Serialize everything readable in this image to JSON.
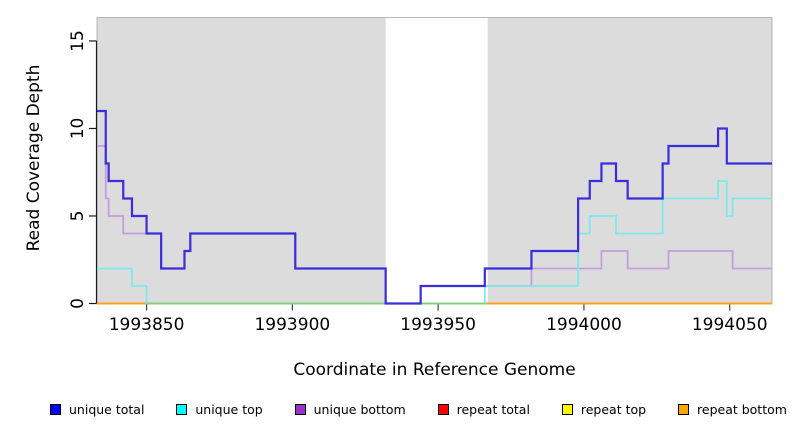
{
  "chart_data": {
    "type": "step-line",
    "x_axis": {
      "label": "Coordinate in Reference Genome",
      "min": 1993833,
      "max": 1994064.5,
      "ticks": [
        1993850,
        1993900,
        1993950,
        1994000,
        1994050
      ]
    },
    "y_axis": {
      "label": "Read Coverage Depth",
      "min": 0,
      "max": 16.34,
      "ticks": [
        0,
        5,
        10,
        15
      ]
    },
    "plot": {
      "background": "#DCDCDC",
      "border": "#B4B4B4",
      "masked_region": {
        "start": 1993932,
        "end": 1993967,
        "color": "#FFFFFF"
      }
    },
    "series": [
      {
        "name": "unique total",
        "line_color": "#3A2EDC",
        "legend_color": "#0000FF",
        "line_width": 2.2,
        "points": [
          [
            1993833,
            11
          ],
          [
            1993836,
            8
          ],
          [
            1993837,
            7
          ],
          [
            1993842,
            6
          ],
          [
            1993845,
            5
          ],
          [
            1993850,
            4
          ],
          [
            1993855,
            2
          ],
          [
            1993863,
            3
          ],
          [
            1993865,
            4
          ],
          [
            1993901,
            2
          ],
          [
            1993932,
            0
          ],
          [
            1993944,
            1
          ],
          [
            1993966,
            2
          ],
          [
            1993982,
            3
          ],
          [
            1993998,
            6
          ],
          [
            1994002,
            7
          ],
          [
            1994006,
            8
          ],
          [
            1994011,
            7
          ],
          [
            1994015,
            6
          ],
          [
            1994027,
            8
          ],
          [
            1994029,
            9
          ],
          [
            1994046,
            10
          ],
          [
            1994049,
            8
          ]
        ]
      },
      {
        "name": "unique top",
        "line_color": "#7DE9EA",
        "legend_color": "#00FFFF",
        "line_width": 1.8,
        "points": [
          [
            1993833,
            2
          ],
          [
            1993845,
            1
          ],
          [
            1993850,
            0
          ],
          [
            1993966,
            1
          ],
          [
            1993998,
            4
          ],
          [
            1994002,
            5
          ],
          [
            1994011,
            4
          ],
          [
            1994027,
            6
          ],
          [
            1994046,
            7
          ],
          [
            1994049,
            5
          ],
          [
            1994051,
            6
          ]
        ]
      },
      {
        "name": "unique bottom",
        "line_color": "#C59CDF",
        "legend_color": "#9932CC",
        "line_width": 1.8,
        "points": [
          [
            1993833,
            9
          ],
          [
            1993836,
            6
          ],
          [
            1993837,
            5
          ],
          [
            1993842,
            4
          ],
          [
            1993855,
            2
          ],
          [
            1993863,
            3
          ],
          [
            1993865,
            4
          ],
          [
            1993901,
            2
          ],
          [
            1993932,
            0
          ],
          [
            1993944,
            1
          ],
          [
            1993982,
            2
          ],
          [
            1994006,
            3
          ],
          [
            1994015,
            2
          ],
          [
            1994029,
            3
          ],
          [
            1994051,
            2
          ]
        ]
      },
      {
        "name": "repeat total",
        "line_color": "#FF0000",
        "legend_color": "#FF0000",
        "line_width": 1.6,
        "points": [
          [
            1993833,
            0
          ]
        ]
      },
      {
        "name": "repeat top",
        "line_color": "#FFFF00",
        "legend_color": "#FFFF00",
        "line_width": 1.6,
        "points": [
          [
            1993833,
            0
          ]
        ]
      },
      {
        "name": "repeat bottom",
        "line_color": "#FFA01E",
        "legend_color": "#FFA500",
        "line_width": 2,
        "points": [
          [
            1993833,
            0
          ]
        ]
      }
    ],
    "zero_overlay": {
      "start": 1993850,
      "end": 1993966,
      "depth": 0,
      "color": "#84CE84"
    }
  },
  "legend": {
    "items": [
      {
        "label": "unique total",
        "color": "#0000FF"
      },
      {
        "label": "unique top",
        "color": "#00FFFF"
      },
      {
        "label": "unique bottom",
        "color": "#9932CC"
      },
      {
        "label": "repeat total",
        "color": "#FF0000"
      },
      {
        "label": "repeat top",
        "color": "#FFFF00"
      },
      {
        "label": "repeat bottom",
        "color": "#FFA500"
      }
    ]
  }
}
